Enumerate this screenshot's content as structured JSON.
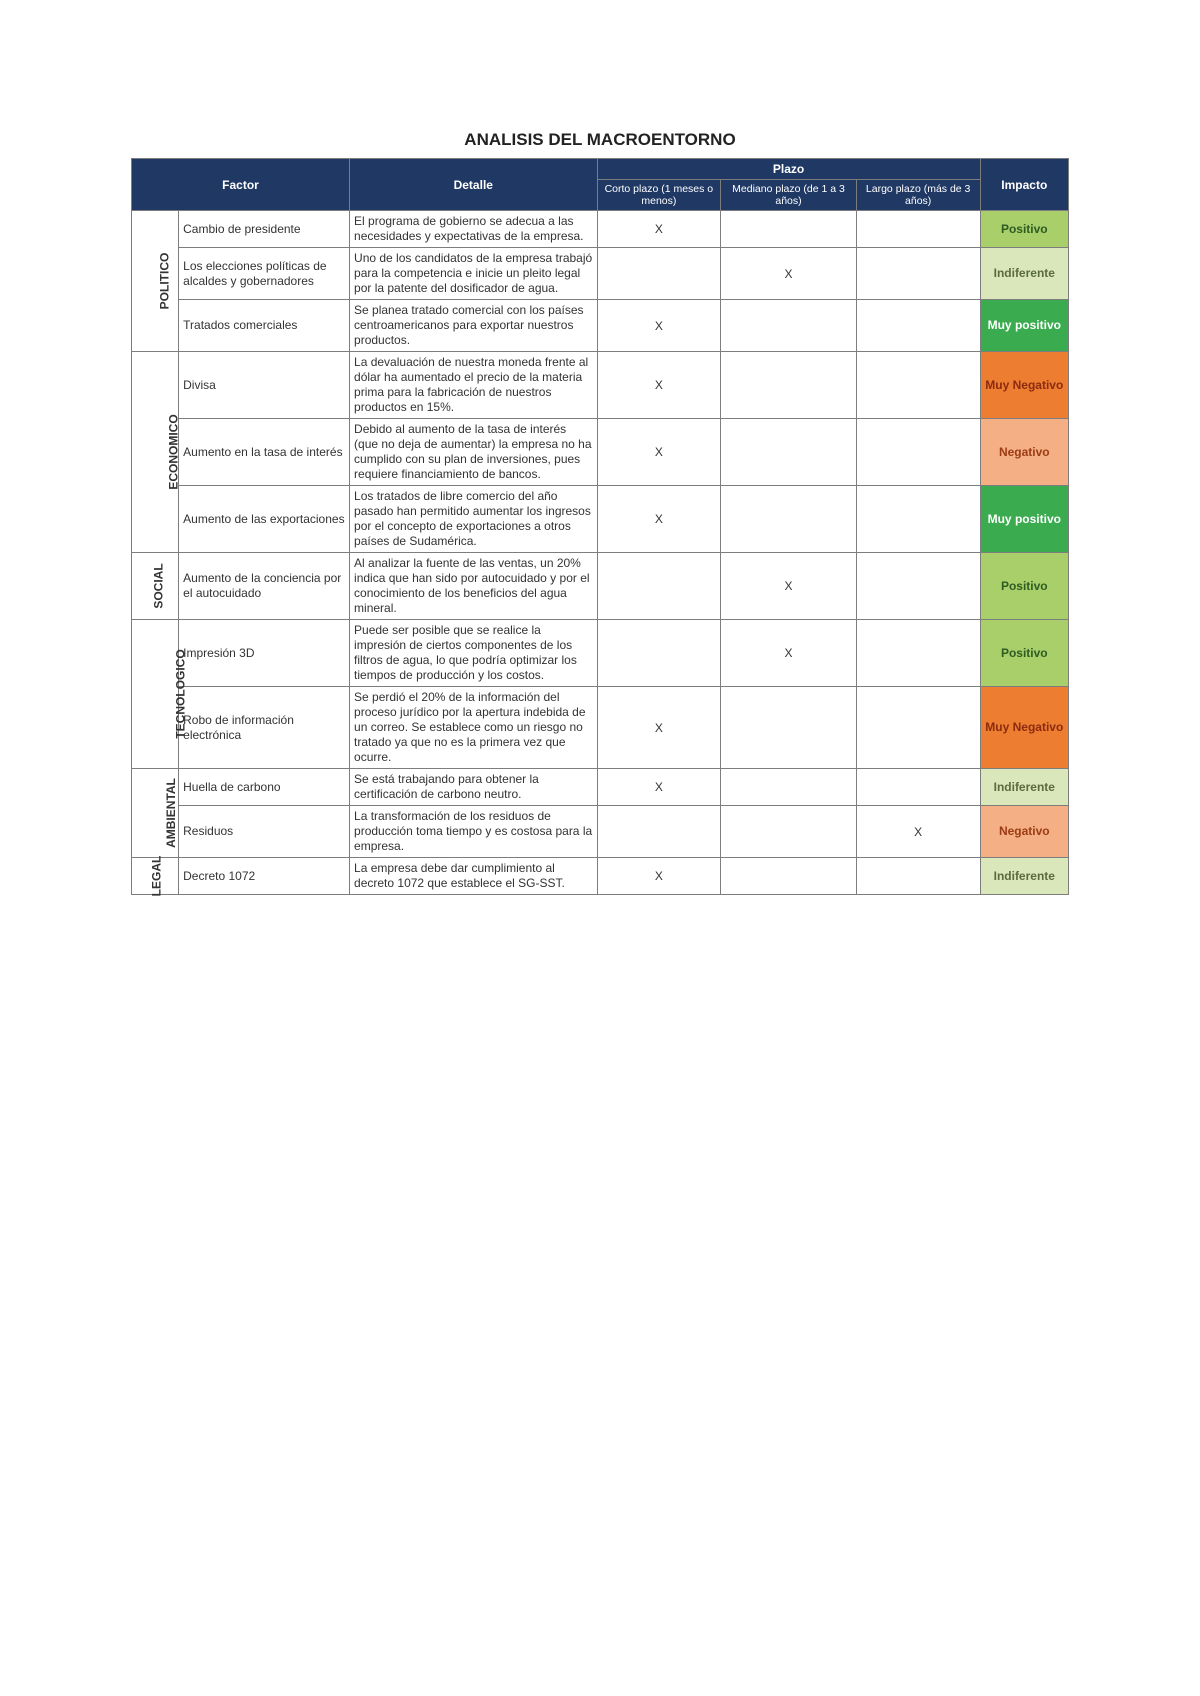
{
  "title": "ANALISIS DEL MACROENTORNO",
  "headers": {
    "factor": "Factor",
    "detalle": "Detalle",
    "plazo": "Plazo",
    "corto": "Corto plazo (1 meses o menos)",
    "mediano": "Mediano plazo (de 1 a 3 años)",
    "largo": "Largo plazo (más de 3 años)",
    "impacto": "Impacto"
  },
  "impact_styles": {
    "Positivo": {
      "bg": "#a9cf6a",
      "fg": "#2e5b22"
    },
    "Indiferente": {
      "bg": "#d9e7bb",
      "fg": "#5a6b3c"
    },
    "Muy positivo": {
      "bg": "#3bab4f",
      "fg": "#ffffff"
    },
    "Muy Negativo": {
      "bg": "#ed7d31",
      "fg": "#8b2b0f"
    },
    "Negativo": {
      "bg": "#f4b084",
      "fg": "#9c3b14"
    }
  },
  "categories": [
    {
      "name": "POLITICO",
      "rows": [
        {
          "factor": "Cambio de presidente",
          "detalle": "El programa de gobierno se adecua a las necesidades y expectativas de la empresa.",
          "corto": "X",
          "mediano": "",
          "largo": "",
          "impacto": "Positivo"
        },
        {
          "factor": "Los elecciones políticas de alcaldes y gobernadores",
          "detalle": "Uno de los candidatos de la empresa trabajó para la competencia e inicie un pleito legal por la patente del dosificador de agua.",
          "corto": "",
          "mediano": "X",
          "largo": "",
          "impacto": "Indiferente"
        },
        {
          "factor": "Tratados comerciales",
          "detalle": "Se planea tratado comercial con los países centroamericanos para exportar nuestros productos.",
          "corto": "X",
          "mediano": "",
          "largo": "",
          "impacto": "Muy positivo"
        }
      ]
    },
    {
      "name": "ECONOMICO",
      "rows": [
        {
          "factor": "Divisa",
          "detalle": "La devaluación de nuestra moneda frente al dólar ha aumentado el precio de la materia prima para la fabricación de nuestros productos en 15%.",
          "corto": "X",
          "mediano": "",
          "largo": "",
          "impacto": "Muy Negativo"
        },
        {
          "factor": "Aumento en la tasa de interés",
          "detalle": "Debido al aumento de la tasa de interés (que no deja de aumentar) la empresa no ha cumplido con su plan de inversiones, pues requiere financiamiento de bancos.",
          "corto": "X",
          "mediano": "",
          "largo": "",
          "impacto": "Negativo"
        },
        {
          "factor": "Aumento de las exportaciones",
          "detalle": "Los tratados de libre comercio del año pasado han permitido aumentar los ingresos por el concepto de exportaciones a otros países de Sudamérica.",
          "corto": "X",
          "mediano": "",
          "largo": "",
          "impacto": "Muy positivo"
        }
      ]
    },
    {
      "name": "SOCIAL",
      "rows": [
        {
          "factor": "Aumento de la conciencia por el autocuidado",
          "detalle": "Al analizar la fuente de las ventas, un 20% indica que han sido por autocuidado y por el conocimiento de los beneficios del agua mineral.",
          "corto": "",
          "mediano": "X",
          "largo": "",
          "impacto": "Positivo"
        }
      ]
    },
    {
      "name": "TECNOLOGICO",
      "rows": [
        {
          "factor": "Impresión 3D",
          "detalle": "Puede ser posible que se realice la impresión de ciertos componentes de los filtros de agua, lo que podría optimizar los tiempos de producción y los costos.",
          "corto": "",
          "mediano": "X",
          "largo": "",
          "impacto": "Positivo"
        },
        {
          "factor": "Robo de información electrónica",
          "detalle": "Se perdió el 20% de la información del proceso jurídico por la apertura indebida de un correo. Se establece como un riesgo no tratado ya que no es la primera vez que ocurre.",
          "corto": "X",
          "mediano": "",
          "largo": "",
          "impacto": "Muy Negativo"
        }
      ]
    },
    {
      "name": "AMBIENTAL",
      "rows": [
        {
          "factor": "Huella de carbono",
          "detalle": "Se está trabajando para obtener la certificación de carbono neutro.",
          "corto": "X",
          "mediano": "",
          "largo": "",
          "impacto": "Indiferente"
        },
        {
          "factor": "Residuos",
          "detalle": "La transformación de los residuos de producción toma tiempo y es costosa para la empresa.",
          "corto": "",
          "mediano": "",
          "largo": "X",
          "impacto": "Negativo"
        }
      ]
    },
    {
      "name": "LEGAL",
      "rows": [
        {
          "factor": "Decreto 1072",
          "detalle": "La empresa debe dar cumplimiento al decreto 1072 que establece el SG-SST.",
          "corto": "X",
          "mediano": "",
          "largo": "",
          "impacto": "Indiferente"
        }
      ]
    }
  ]
}
